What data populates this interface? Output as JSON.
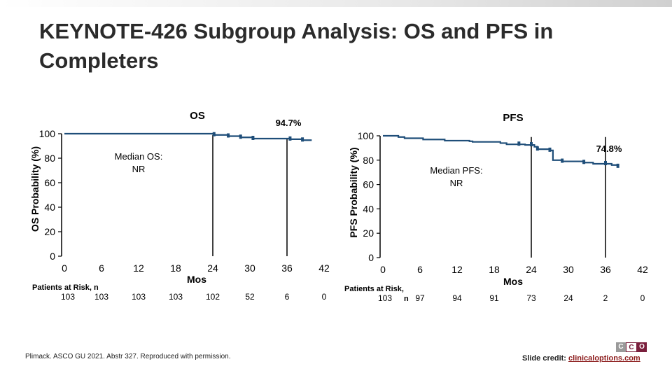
{
  "slide": {
    "title": "KEYNOTE-426 Subgroup Analysis: OS and PFS in Completers",
    "footnote": "Plimack. ASCO GU 2021. Abstr 327. Reproduced with permission.",
    "credit_label": "Slide credit:",
    "credit_link": "clinicaloptions.com",
    "logo_text": "CCO",
    "colors": {
      "curve": "#1f4e79",
      "title": "#2b2b2b",
      "link": "#8b1a1a"
    }
  },
  "chart_data": [
    {
      "type": "line",
      "title": "OS",
      "ylabel": "OS Probability (%)",
      "xlabel": "Mos",
      "ylim": [
        0,
        100
      ],
      "xticks": [
        0,
        6,
        12,
        18,
        24,
        30,
        36,
        42
      ],
      "yticks": [
        0,
        20,
        40,
        60,
        80,
        100
      ],
      "x": [
        0,
        24,
        24.2,
        26,
        26.5,
        28,
        28.5,
        30,
        30.5,
        36,
        36.5,
        38,
        38.5,
        40
      ],
      "y": [
        100,
        100,
        99,
        99,
        98,
        98,
        97,
        97,
        96,
        96,
        95.5,
        95.5,
        94.7,
        94.7
      ],
      "median_label": "Median OS:\nNR",
      "endpoint_label": "94.7%",
      "marker_months": [
        24
      ],
      "at_risk_label": "Patients at Risk, n",
      "at_risk": [
        "103",
        "103",
        "103",
        "103",
        "102",
        "52",
        "6",
        "0"
      ]
    },
    {
      "type": "line",
      "title": "PFS",
      "ylabel": "PFS Probability (%)",
      "xlabel": "Mos",
      "ylim": [
        0,
        100
      ],
      "xticks": [
        0,
        6,
        12,
        18,
        24,
        30,
        36,
        42
      ],
      "yticks": [
        0,
        20,
        40,
        60,
        80,
        100
      ],
      "x": [
        0,
        2,
        2.5,
        3.5,
        6,
        6.5,
        9,
        10,
        12,
        14,
        14.5,
        18,
        19,
        20,
        22,
        23,
        24,
        24.5,
        25,
        26,
        27,
        27.5,
        29,
        32,
        32.5,
        34,
        36,
        37,
        38
      ],
      "y": [
        100,
        100,
        99,
        98,
        98,
        97,
        97,
        96,
        96,
        95.5,
        95,
        95,
        94,
        93,
        93,
        92.5,
        92.5,
        91,
        89,
        89,
        88,
        80,
        79,
        79,
        78,
        77,
        77,
        76,
        74.8
      ],
      "median_label": "Median PFS:\nNR",
      "endpoint_label": "74.8%",
      "marker_months": [
        24,
        36
      ],
      "at_risk_label": "Patients at Risk,\nn",
      "at_risk": [
        "103",
        "97",
        "94",
        "91",
        "73",
        "24",
        "2",
        "0"
      ]
    }
  ]
}
